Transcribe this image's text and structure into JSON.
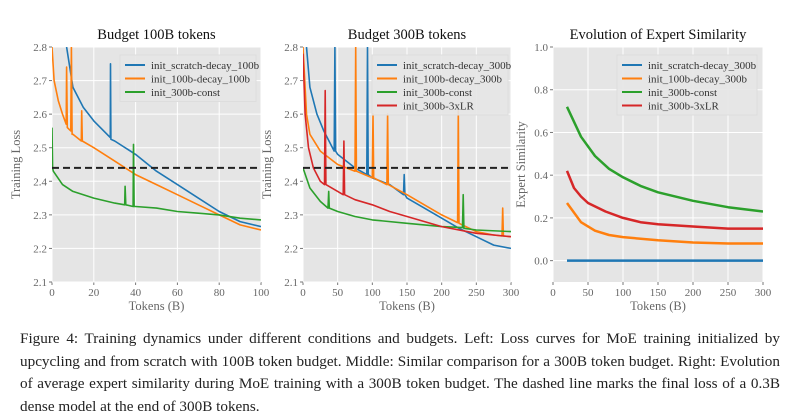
{
  "caption": "Figure 4: Training dynamics under different conditions and budgets. Left: Loss curves for MoE training initialized by upcycling and from scratch with 100B token budget. Middle: Similar comparison for a 300B token budget. Right: Evolution of average expert similarity during MoE training with a 300B token budget. The dashed line marks the final loss of a 0.3B dense model at the end of 300B tokens.",
  "colors": {
    "blue": "#1f77b4",
    "orange": "#ff7f0e",
    "green": "#2ca02c",
    "red": "#d62728",
    "background": "#e5e5e5",
    "grid": "#ffffff",
    "dashed": "#222222"
  },
  "chart_data": [
    {
      "type": "line",
      "title": "Budget 100B tokens",
      "xlabel": "Tokens (B)",
      "ylabel": "Training Loss",
      "xlim": [
        0,
        100
      ],
      "ylim": [
        2.1,
        2.8
      ],
      "xticks": [
        "0",
        "20",
        "40",
        "60",
        "80",
        "100"
      ],
      "yticks": [
        "2.1",
        "2.2",
        "2.3",
        "2.4",
        "2.5",
        "2.6",
        "2.7",
        "2.8"
      ],
      "grid": true,
      "legend": "top-right",
      "hline": {
        "y": 2.44,
        "style": "dashed"
      },
      "series": [
        {
          "name": "init_scratch-decay_100b",
          "color": "#1f77b4",
          "x": [
            7,
            10,
            15,
            20,
            27.9,
            28,
            28.2,
            30,
            40,
            50,
            60,
            70,
            80,
            90,
            100
          ],
          "y": [
            2.8,
            2.68,
            2.62,
            2.58,
            2.53,
            2.75,
            2.525,
            2.52,
            2.48,
            2.43,
            2.39,
            2.35,
            2.31,
            2.28,
            2.265
          ]
        },
        {
          "name": "init_100b-decay_100b",
          "color": "#ff7f0e",
          "x": [
            0,
            1,
            3,
            5,
            6.8,
            7,
            7.3,
            9,
            9.3,
            9.6,
            10,
            14,
            14.2,
            14.5,
            20,
            30,
            40,
            50,
            60,
            70,
            80,
            90,
            100
          ],
          "y": [
            2.8,
            2.7,
            2.64,
            2.6,
            2.57,
            2.74,
            2.56,
            2.55,
            2.8,
            2.54,
            2.54,
            2.52,
            2.61,
            2.52,
            2.5,
            2.46,
            2.42,
            2.39,
            2.36,
            2.33,
            2.3,
            2.27,
            2.255
          ]
        },
        {
          "name": "init_300b-const",
          "color": "#2ca02c",
          "x": [
            0,
            0.3,
            0.6,
            5,
            10,
            20,
            30,
            34.8,
            35,
            35.3,
            38.8,
            39,
            39.3,
            40,
            50,
            60,
            70,
            80,
            90,
            100
          ],
          "y": [
            2.56,
            2.44,
            2.43,
            2.39,
            2.37,
            2.35,
            2.335,
            2.33,
            2.385,
            2.33,
            2.325,
            2.51,
            2.325,
            2.325,
            2.32,
            2.31,
            2.305,
            2.3,
            2.29,
            2.285
          ]
        }
      ]
    },
    {
      "type": "line",
      "title": "Budget 300B tokens",
      "xlabel": "Tokens (B)",
      "ylabel": "Training Loss",
      "xlim": [
        0,
        300
      ],
      "ylim": [
        2.1,
        2.8
      ],
      "xticks": [
        "0",
        "50",
        "100",
        "150",
        "200",
        "250",
        "300"
      ],
      "yticks": [
        "2.1",
        "2.2",
        "2.3",
        "2.4",
        "2.5",
        "2.6",
        "2.7",
        "2.8"
      ],
      "grid": true,
      "legend": "top-right",
      "hline": {
        "y": 2.44,
        "style": "dashed"
      },
      "series": [
        {
          "name": "init_scratch-decay_300b",
          "color": "#1f77b4",
          "x": [
            5,
            10,
            20,
            30,
            45,
            46,
            47,
            50,
            75,
            92,
            93,
            94,
            100,
            125,
            145,
            146,
            147,
            150,
            175,
            200,
            225,
            250,
            275,
            300
          ],
          "y": [
            2.8,
            2.68,
            2.6,
            2.55,
            2.49,
            2.8,
            2.49,
            2.48,
            2.44,
            2.42,
            2.8,
            2.42,
            2.41,
            2.39,
            2.36,
            2.42,
            2.36,
            2.35,
            2.32,
            2.29,
            2.26,
            2.235,
            2.21,
            2.2
          ]
        },
        {
          "name": "init_100b-decay_300b",
          "color": "#ff7f0e",
          "x": [
            0,
            5,
            10,
            25,
            50,
            75,
            76,
            77,
            100,
            101,
            102,
            121,
            122,
            123,
            150,
            175,
            200,
            223,
            224,
            225,
            250,
            275,
            287,
            288,
            289,
            300
          ],
          "y": [
            2.8,
            2.6,
            2.54,
            2.49,
            2.45,
            2.43,
            2.8,
            2.43,
            2.41,
            2.6,
            2.41,
            2.39,
            2.6,
            2.39,
            2.36,
            2.33,
            2.3,
            2.277,
            2.61,
            2.275,
            2.25,
            2.24,
            2.237,
            2.32,
            2.237,
            2.235
          ]
        },
        {
          "name": "init_300b-const",
          "color": "#2ca02c",
          "x": [
            0,
            10,
            25,
            36,
            37,
            38,
            50,
            75,
            100,
            150,
            200,
            230,
            231,
            232,
            250,
            300
          ],
          "y": [
            2.44,
            2.38,
            2.34,
            2.32,
            2.37,
            2.32,
            2.31,
            2.295,
            2.285,
            2.275,
            2.265,
            2.262,
            2.36,
            2.26,
            2.255,
            2.25
          ]
        },
        {
          "name": "init_300b-3xLR",
          "color": "#d62728",
          "x": [
            0,
            3,
            8,
            15,
            25,
            31,
            32,
            33,
            50,
            58,
            59,
            60,
            75,
            100,
            125,
            150,
            200,
            250,
            300
          ],
          "y": [
            2.78,
            2.6,
            2.5,
            2.44,
            2.4,
            2.39,
            2.67,
            2.39,
            2.37,
            2.36,
            2.52,
            2.36,
            2.345,
            2.33,
            2.31,
            2.295,
            2.265,
            2.245,
            2.235
          ]
        }
      ]
    },
    {
      "type": "line",
      "title": "Evolution of Expert Similarity",
      "xlabel": "Tokens (B)",
      "ylabel": "Expert Similarity",
      "xlim": [
        0,
        300
      ],
      "ylim": [
        -0.1,
        1.0
      ],
      "xticks": [
        "0",
        "50",
        "100",
        "150",
        "200",
        "250",
        "300"
      ],
      "yticks": [
        "0.0",
        "0.2",
        "0.4",
        "0.6",
        "0.8",
        "1.0"
      ],
      "grid": true,
      "legend": "top-right",
      "series": [
        {
          "name": "init_scratch-decay_300b",
          "color": "#1f77b4",
          "x": [
            20,
            300
          ],
          "y": [
            0,
            0
          ]
        },
        {
          "name": "init_100b-decay_300b",
          "color": "#ff7f0e",
          "x": [
            20,
            40,
            60,
            80,
            100,
            150,
            200,
            250,
            300
          ],
          "y": [
            0.27,
            0.18,
            0.14,
            0.12,
            0.11,
            0.095,
            0.085,
            0.08,
            0.08
          ]
        },
        {
          "name": "init_300b-const",
          "color": "#2ca02c",
          "x": [
            20,
            40,
            60,
            80,
            100,
            125,
            150,
            200,
            250,
            300
          ],
          "y": [
            0.72,
            0.58,
            0.49,
            0.43,
            0.39,
            0.35,
            0.32,
            0.28,
            0.25,
            0.23
          ]
        },
        {
          "name": "init_300b-3xLR",
          "color": "#d62728",
          "x": [
            20,
            30,
            40,
            50,
            75,
            100,
            125,
            150,
            200,
            250,
            300
          ],
          "y": [
            0.42,
            0.34,
            0.3,
            0.27,
            0.23,
            0.2,
            0.18,
            0.17,
            0.16,
            0.15,
            0.15
          ]
        }
      ]
    }
  ]
}
